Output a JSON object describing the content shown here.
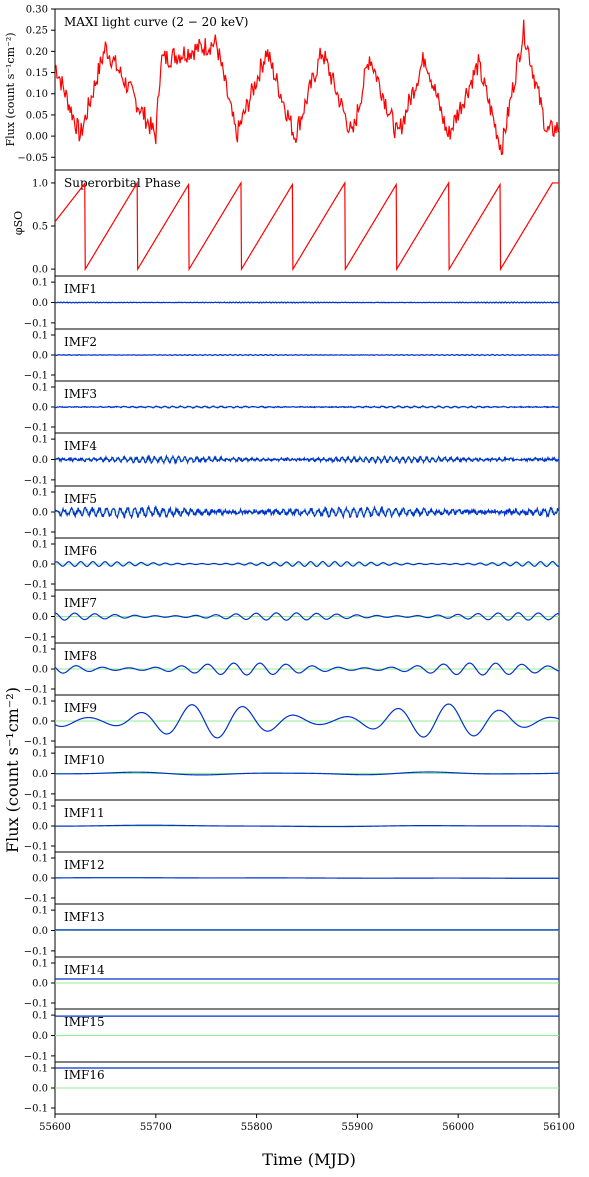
{
  "chart_data": {
    "type": "line",
    "title": "",
    "xlabel": "Time (MJD)",
    "ylabel": "Flux (count s⁻¹cm⁻²)",
    "x_range": [
      55600,
      56100
    ],
    "x_ticks": [
      55600,
      55700,
      55800,
      55900,
      56000,
      56100
    ],
    "colors": {
      "lightcurve": "#ff0000",
      "phase": "#ff0000",
      "imf": "#0033cc",
      "zero_line": "#90ee90"
    },
    "panels": [
      {
        "id": "lightcurve",
        "label": "MAXI light curve (2 − 20 keV)",
        "ylabel": "Flux (count s⁻¹cm⁻²)",
        "ylim": [
          -0.08,
          0.3
        ],
        "yticks": [
          -0.05,
          0.0,
          0.05,
          0.1,
          0.15,
          0.2,
          0.25,
          0.3
        ],
        "ytick_labels": [
          "−0.05",
          "0.00",
          "0.05",
          "0.10",
          "0.15",
          "0.20",
          "0.25",
          "0.30"
        ],
        "series": {
          "x": [
            55600,
            55625,
            55650,
            55700,
            55705,
            55760,
            55780,
            55810,
            55838,
            55865,
            55895,
            55912,
            55940,
            55967,
            55990,
            56020,
            56043,
            56065,
            56088,
            56100
          ],
          "y": [
            0.17,
            0.0,
            0.21,
            0.0,
            0.18,
            0.22,
            0.0,
            0.2,
            0.0,
            0.2,
            0.0,
            0.19,
            0.0,
            0.19,
            0.0,
            0.17,
            -0.03,
            0.25,
            0.01,
            0.02
          ]
        }
      },
      {
        "id": "phase",
        "label": "Superorbital Phase",
        "ylabel": "φSO",
        "ylim": [
          -0.08,
          1.15
        ],
        "yticks": [
          0.0,
          0.5,
          1.0
        ],
        "ytick_labels": [
          "0.0",
          "0.5",
          "1.0"
        ],
        "series": {
          "resets": [
            55630,
            55682,
            55733,
            55785,
            55836,
            55888,
            55939,
            55991,
            56042
          ],
          "start_phase": 0.55,
          "end_phase": 0.92
        }
      },
      {
        "id": "imf1",
        "label": "IMF1",
        "amplitude": 0.002,
        "period": 3,
        "ylim": [
          -0.13,
          0.13
        ]
      },
      {
        "id": "imf2",
        "label": "IMF2",
        "amplitude": 0.002,
        "period": 5,
        "ylim": [
          -0.13,
          0.13
        ]
      },
      {
        "id": "imf3",
        "label": "IMF3",
        "amplitude": 0.004,
        "period": 8,
        "ylim": [
          -0.13,
          0.13
        ]
      },
      {
        "id": "imf4",
        "label": "IMF4",
        "amplitude": 0.012,
        "period": 6,
        "ylim": [
          -0.13,
          0.13
        ]
      },
      {
        "id": "imf5",
        "label": "IMF5",
        "amplitude": 0.02,
        "period": 7,
        "ylim": [
          -0.13,
          0.13
        ]
      },
      {
        "id": "imf6",
        "label": "IMF6",
        "amplitude": 0.012,
        "period": 12,
        "ylim": [
          -0.13,
          0.13
        ]
      },
      {
        "id": "imf7",
        "label": "IMF7",
        "amplitude": 0.018,
        "period": 20,
        "ylim": [
          -0.13,
          0.13
        ]
      },
      {
        "id": "imf8",
        "label": "IMF8",
        "amplitude": 0.03,
        "period": 26,
        "ylim": [
          -0.13,
          0.13
        ]
      },
      {
        "id": "imf9",
        "label": "IMF9",
        "amplitude": 0.085,
        "period": 51,
        "ylim": [
          -0.13,
          0.13
        ]
      },
      {
        "id": "imf10",
        "label": "IMF10",
        "amplitude": 0.008,
        "period": 150,
        "ylim": [
          -0.13,
          0.13
        ]
      },
      {
        "id": "imf11",
        "label": "IMF11",
        "amplitude": 0.004,
        "period": 300,
        "ylim": [
          -0.13,
          0.13
        ]
      },
      {
        "id": "imf12",
        "label": "IMF12",
        "amplitude": 0.002,
        "period": 600,
        "ylim": [
          -0.13,
          0.13
        ]
      },
      {
        "id": "imf13",
        "label": "IMF13",
        "offset": 0.003,
        "ylim": [
          -0.13,
          0.13
        ]
      },
      {
        "id": "imf14",
        "label": "IMF14",
        "offset": 0.02,
        "ylim": [
          -0.13,
          0.13
        ]
      },
      {
        "id": "imf15",
        "label": "IMF15",
        "offset": 0.095,
        "ylim": [
          -0.13,
          0.13
        ]
      },
      {
        "id": "imf16",
        "label": "IMF16",
        "offset": 0.1,
        "ylim": [
          -0.13,
          0.13
        ]
      }
    ],
    "imf_yticks": [
      -0.1,
      0.0,
      0.1
    ],
    "imf_ytick_labels": [
      "−0.1",
      "0.0",
      "0.1"
    ]
  }
}
